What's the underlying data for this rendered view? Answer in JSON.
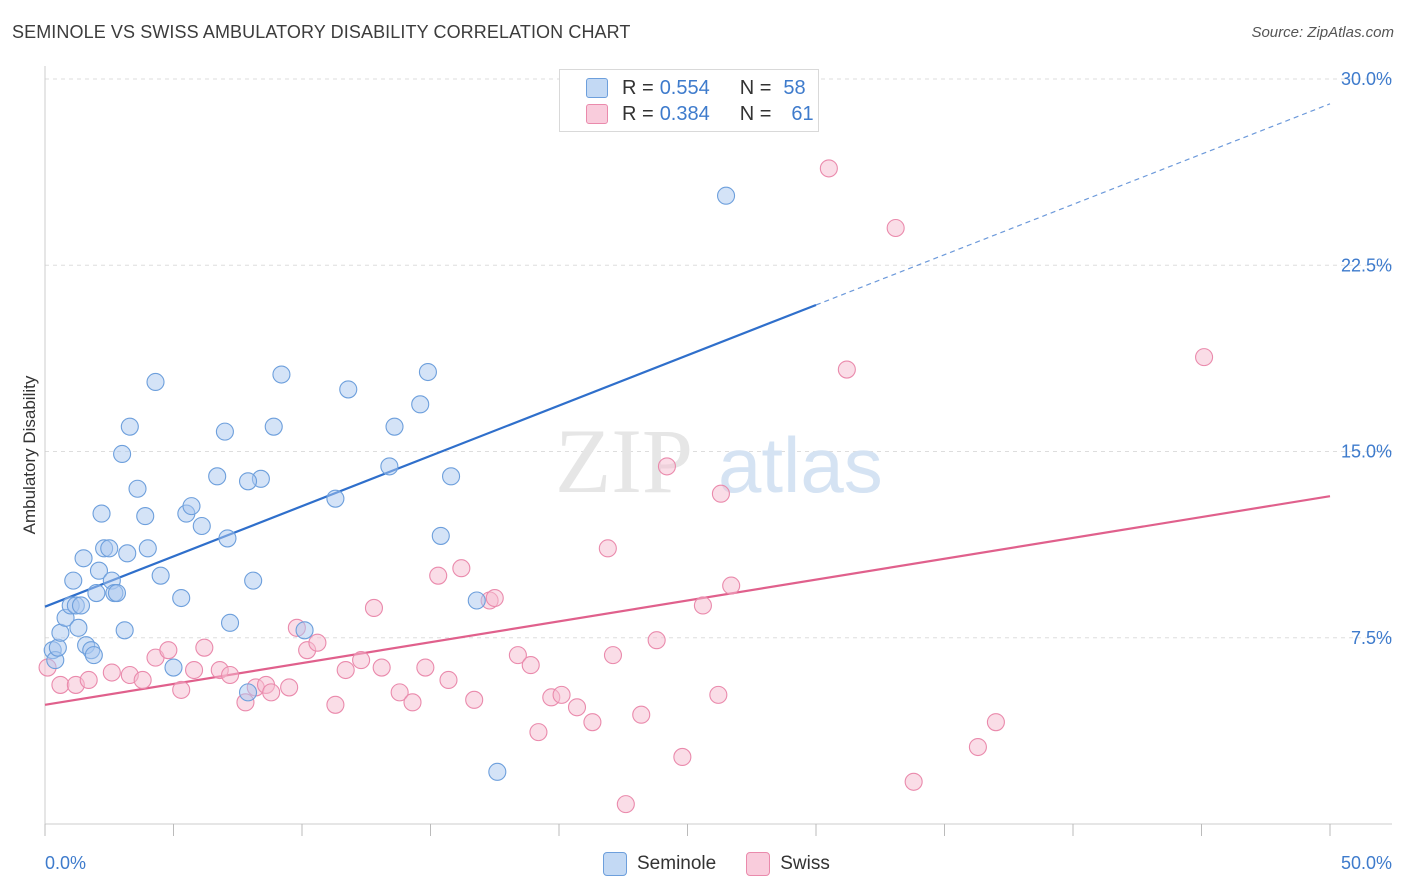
{
  "title": "SEMINOLE VS SWISS AMBULATORY DISABILITY CORRELATION CHART",
  "source": "Source: ZipAtlas.com",
  "watermark": {
    "zip": "ZIP",
    "atlas": "atlas"
  },
  "legend": {
    "rows": [
      {
        "r_label": "R =",
        "r_value": "0.554",
        "n_label": "N =",
        "n_value": "58"
      },
      {
        "r_label": "R =",
        "r_value": "0.384",
        "n_label": "N =",
        "n_value": "61"
      }
    ]
  },
  "bottom_legend": {
    "series1": "Seminole",
    "series2": "Swiss"
  },
  "colors": {
    "seminole_fill": "#a9c8ef",
    "seminole_stroke": "#6d9fdc",
    "seminole_line": "#2f6fcb",
    "swiss_fill": "#f6bcd0",
    "swiss_stroke": "#ea8aac",
    "swiss_line": "#e0608c",
    "tick_label": "#3e7bcc",
    "grid": "#dddddd"
  },
  "chart_data": {
    "type": "scatter",
    "title": "SEMINOLE VS SWISS AMBULATORY DISABILITY CORRELATION CHART",
    "xlabel": "",
    "ylabel": "Ambulatory Disability",
    "xlim": [
      0,
      50
    ],
    "ylim": [
      0,
      30
    ],
    "x_tick_labels": [
      {
        "value": 0,
        "label": "0.0%"
      },
      {
        "value": 50,
        "label": "50.0%"
      }
    ],
    "y_tick_labels": [
      {
        "value": 7.5,
        "label": "7.5%"
      },
      {
        "value": 15,
        "label": "15.0%"
      },
      {
        "value": 22.5,
        "label": "22.5%"
      },
      {
        "value": 30,
        "label": "30.0%"
      }
    ],
    "grid": true,
    "legend_position": "top-center",
    "series": [
      {
        "name": "Seminole",
        "r": 0.554,
        "n": 58,
        "trend": {
          "x0": 0,
          "y0": 8.75,
          "x1": 30,
          "y1": 20.9,
          "dashed_to_x": 50,
          "dashed_to_y": 29.0
        },
        "points": [
          [
            0.3,
            7.0
          ],
          [
            0.4,
            6.6
          ],
          [
            0.5,
            7.1
          ],
          [
            0.6,
            7.7
          ],
          [
            0.8,
            8.3
          ],
          [
            1.0,
            8.8
          ],
          [
            1.1,
            9.8
          ],
          [
            1.2,
            8.8
          ],
          [
            1.3,
            7.9
          ],
          [
            1.4,
            8.8
          ],
          [
            1.5,
            10.7
          ],
          [
            1.6,
            7.2
          ],
          [
            1.8,
            7.0
          ],
          [
            1.9,
            6.8
          ],
          [
            2.0,
            9.3
          ],
          [
            2.1,
            10.2
          ],
          [
            2.2,
            12.5
          ],
          [
            2.3,
            11.1
          ],
          [
            2.5,
            11.1
          ],
          [
            2.6,
            9.8
          ],
          [
            2.7,
            9.3
          ],
          [
            2.8,
            9.3
          ],
          [
            3.1,
            7.8
          ],
          [
            3.2,
            10.9
          ],
          [
            3.0,
            14.9
          ],
          [
            3.3,
            16.0
          ],
          [
            3.6,
            13.5
          ],
          [
            3.9,
            12.4
          ],
          [
            4.0,
            11.1
          ],
          [
            4.5,
            10.0
          ],
          [
            4.3,
            17.8
          ],
          [
            5.3,
            9.1
          ],
          [
            5.5,
            12.5
          ],
          [
            5.7,
            12.8
          ],
          [
            6.1,
            12.0
          ],
          [
            6.7,
            14.0
          ],
          [
            7.1,
            11.5
          ],
          [
            7.0,
            15.8
          ],
          [
            7.2,
            8.1
          ],
          [
            8.1,
            9.8
          ],
          [
            8.4,
            13.9
          ],
          [
            7.9,
            13.8
          ],
          [
            8.9,
            16.0
          ],
          [
            9.2,
            18.1
          ],
          [
            10.1,
            7.8
          ],
          [
            11.3,
            13.1
          ],
          [
            11.8,
            17.5
          ],
          [
            13.4,
            14.4
          ],
          [
            13.6,
            16.0
          ],
          [
            14.6,
            16.9
          ],
          [
            14.9,
            18.2
          ],
          [
            15.4,
            11.6
          ],
          [
            15.8,
            14.0
          ],
          [
            16.8,
            9.0
          ],
          [
            17.6,
            2.1
          ],
          [
            5.0,
            6.3
          ],
          [
            7.9,
            5.3
          ],
          [
            26.5,
            25.3
          ]
        ]
      },
      {
        "name": "Swiss",
        "r": 0.384,
        "n": 61,
        "trend": {
          "x0": 0,
          "y0": 4.8,
          "x1": 50,
          "y1": 13.2
        },
        "points": [
          [
            0.1,
            6.3
          ],
          [
            0.6,
            5.6
          ],
          [
            1.2,
            5.6
          ],
          [
            1.7,
            5.8
          ],
          [
            2.6,
            6.1
          ],
          [
            3.3,
            6.0
          ],
          [
            3.8,
            5.8
          ],
          [
            4.3,
            6.7
          ],
          [
            4.8,
            7.0
          ],
          [
            5.3,
            5.4
          ],
          [
            5.8,
            6.2
          ],
          [
            6.2,
            7.1
          ],
          [
            6.8,
            6.2
          ],
          [
            7.2,
            6.0
          ],
          [
            7.8,
            4.9
          ],
          [
            8.2,
            5.5
          ],
          [
            8.6,
            5.6
          ],
          [
            8.8,
            5.3
          ],
          [
            9.5,
            5.5
          ],
          [
            9.8,
            7.9
          ],
          [
            10.2,
            7.0
          ],
          [
            10.6,
            7.3
          ],
          [
            11.3,
            4.8
          ],
          [
            11.7,
            6.2
          ],
          [
            12.3,
            6.6
          ],
          [
            12.8,
            8.7
          ],
          [
            13.1,
            6.3
          ],
          [
            13.8,
            5.3
          ],
          [
            14.3,
            4.9
          ],
          [
            14.8,
            6.3
          ],
          [
            15.3,
            10.0
          ],
          [
            15.7,
            5.8
          ],
          [
            16.2,
            10.3
          ],
          [
            16.7,
            5.0
          ],
          [
            17.3,
            9.0
          ],
          [
            17.5,
            9.1
          ],
          [
            18.4,
            6.8
          ],
          [
            18.9,
            6.4
          ],
          [
            19.2,
            3.7
          ],
          [
            19.7,
            5.1
          ],
          [
            20.1,
            5.2
          ],
          [
            20.7,
            4.7
          ],
          [
            21.3,
            4.1
          ],
          [
            21.9,
            11.1
          ],
          [
            22.6,
            0.8
          ],
          [
            22.1,
            6.8
          ],
          [
            23.2,
            4.4
          ],
          [
            23.8,
            7.4
          ],
          [
            24.2,
            14.4
          ],
          [
            24.8,
            2.7
          ],
          [
            25.6,
            8.8
          ],
          [
            26.2,
            5.2
          ],
          [
            26.3,
            13.3
          ],
          [
            26.7,
            9.6
          ],
          [
            30.5,
            26.4
          ],
          [
            31.2,
            18.3
          ],
          [
            33.1,
            24.0
          ],
          [
            33.8,
            1.7
          ],
          [
            36.3,
            3.1
          ],
          [
            37.0,
            4.1
          ],
          [
            45.1,
            18.8
          ]
        ]
      }
    ]
  }
}
